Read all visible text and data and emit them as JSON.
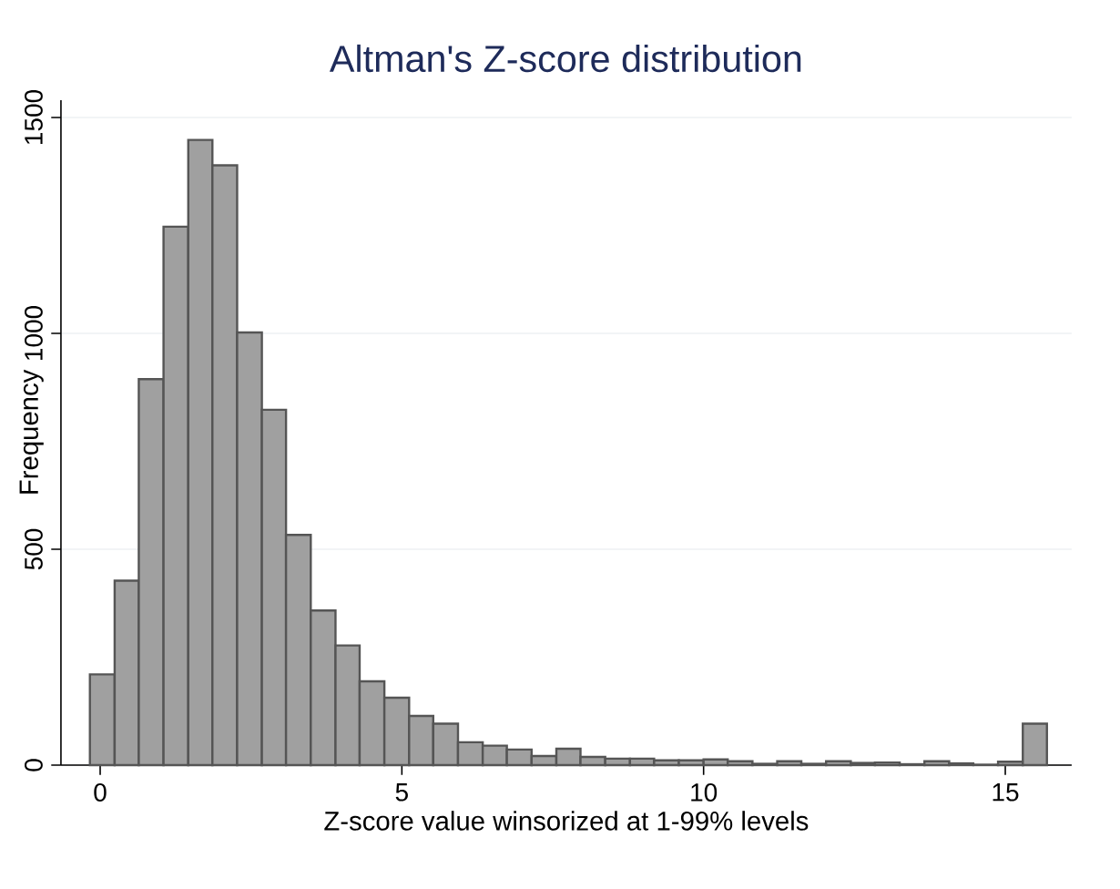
{
  "chart_data": {
    "type": "histogram",
    "title": "Altman's Z-score distribution",
    "xlabel": "Z-score value winsorized at 1-99% levels",
    "ylabel": "Frequency",
    "bins": [
      -0.17,
      0.24,
      0.64,
      1.05,
      1.46,
      1.86,
      2.27,
      2.68,
      3.08,
      3.49,
      3.9,
      4.3,
      4.71,
      5.12,
      5.52,
      5.93,
      6.34,
      6.74,
      7.15,
      7.56,
      7.96,
      8.37,
      8.78,
      9.18,
      9.59,
      10.0,
      10.4,
      10.81,
      11.22,
      11.62,
      12.03,
      12.44,
      12.84,
      13.25,
      13.66,
      14.07,
      14.47,
      14.88,
      15.29,
      15.69
    ],
    "values": [
      210,
      427,
      894,
      1247,
      1448,
      1389,
      1002,
      823,
      533,
      358,
      277,
      194,
      156,
      114,
      96,
      53,
      45,
      36,
      21,
      38,
      19,
      15,
      15,
      11,
      11,
      13,
      9,
      3,
      9,
      3,
      9,
      5,
      6,
      2,
      9,
      4,
      1,
      8,
      96
    ],
    "color": "#a0a0a0",
    "xlim": [
      -0.65,
      16.1
    ],
    "ylim": [
      0,
      1540
    ],
    "xticks": [
      0,
      5,
      10,
      15
    ],
    "yticks": [
      0,
      500,
      1000,
      1500
    ],
    "grid": "y"
  }
}
